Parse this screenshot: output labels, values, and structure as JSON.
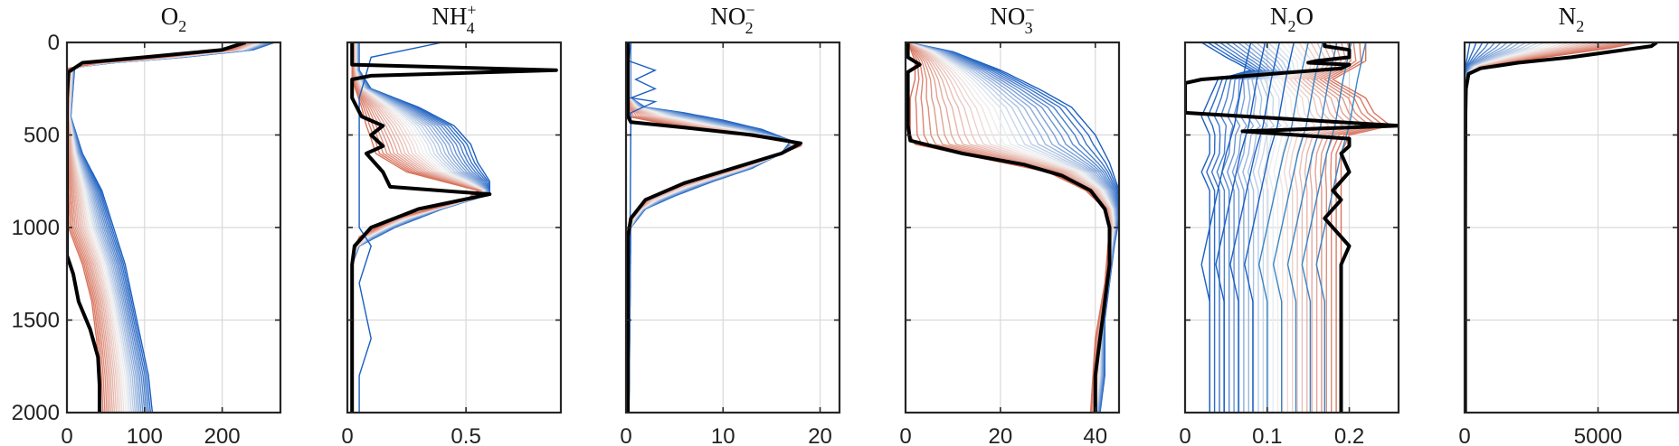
{
  "chart_data": [
    {
      "type": "line",
      "title_main": "O",
      "title_sub": "2",
      "title_sup": "",
      "xlim": [
        0,
        275
      ],
      "xticks": [
        0,
        100,
        200
      ],
      "xtick_labels": [
        "0",
        "100",
        "200"
      ],
      "ylim": [
        0,
        2000
      ],
      "yreverse": true,
      "grid": true,
      "yticks": [
        0,
        500,
        1000,
        1500,
        2000
      ],
      "ytick_labels": [
        "0",
        "500",
        "1000",
        "1500",
        "2000"
      ],
      "colormap_start": "#1b5fc2",
      "colormap_mid": "#f2f2f2",
      "colormap_end": "#d9735c",
      "bold_color": "#000000",
      "ensemble_start": [
        [
          268,
          0
        ],
        [
          240,
          40
        ],
        [
          150,
          80
        ],
        [
          60,
          110
        ],
        [
          10,
          135
        ],
        [
          5,
          400
        ],
        [
          20,
          600
        ],
        [
          45,
          800
        ],
        [
          60,
          1000
        ],
        [
          75,
          1200
        ],
        [
          85,
          1400
        ],
        [
          95,
          1600
        ],
        [
          105,
          1800
        ],
        [
          110,
          2000
        ]
      ],
      "ensemble_end": [
        [
          230,
          0
        ],
        [
          210,
          40
        ],
        [
          120,
          80
        ],
        [
          40,
          110
        ],
        [
          2,
          140
        ],
        [
          0,
          600
        ],
        [
          0,
          800
        ],
        [
          2,
          1000
        ],
        [
          20,
          1200
        ],
        [
          32,
          1400
        ],
        [
          38,
          1600
        ],
        [
          42,
          1800
        ],
        [
          44,
          2000
        ]
      ],
      "bold": [
        [
          230,
          0
        ],
        [
          200,
          40
        ],
        [
          100,
          80
        ],
        [
          20,
          110
        ],
        [
          2,
          160
        ],
        [
          0,
          300
        ],
        [
          0,
          850
        ],
        [
          0,
          1150
        ],
        [
          8,
          1250
        ],
        [
          15,
          1400
        ],
        [
          30,
          1550
        ],
        [
          40,
          1700
        ],
        [
          42,
          1850
        ],
        [
          42,
          2000
        ]
      ],
      "thin_blue": []
    },
    {
      "type": "line",
      "title_main": "NH",
      "title_sub": "4",
      "title_sup": "+",
      "xlim": [
        0,
        0.9
      ],
      "xticks": [
        0,
        0.5
      ],
      "xtick_labels": [
        "0",
        "0.5"
      ],
      "ylim": [
        0,
        2000
      ],
      "yreverse": true,
      "grid": true,
      "yticks": [
        0,
        500,
        1000,
        1500,
        2000
      ],
      "ytick_labels": [
        "",
        "",
        "",
        "",
        ""
      ],
      "colormap_start": "#1b5fc2",
      "colormap_mid": "#f2f2f2",
      "colormap_end": "#d9735c",
      "bold_color": "#000000",
      "ensemble_start": [
        [
          0.05,
          0
        ],
        [
          0.05,
          150
        ],
        [
          0.1,
          250
        ],
        [
          0.3,
          350
        ],
        [
          0.45,
          450
        ],
        [
          0.52,
          550
        ],
        [
          0.55,
          650
        ],
        [
          0.6,
          750
        ],
        [
          0.6,
          820
        ],
        [
          0.4,
          900
        ],
        [
          0.2,
          1000
        ],
        [
          0.05,
          1100
        ],
        [
          0.02,
          1200
        ],
        [
          0.02,
          2000
        ]
      ],
      "ensemble_end": [
        [
          0.02,
          0
        ],
        [
          0.02,
          200
        ],
        [
          0.06,
          350
        ],
        [
          0.08,
          450
        ],
        [
          0.1,
          520
        ],
        [
          0.12,
          600
        ],
        [
          0.25,
          700
        ],
        [
          0.55,
          800
        ],
        [
          0.5,
          850
        ],
        [
          0.2,
          950
        ],
        [
          0.05,
          1050
        ],
        [
          0.02,
          1150
        ],
        [
          0.02,
          2000
        ]
      ],
      "bold": [
        [
          0.02,
          0
        ],
        [
          0.02,
          120
        ],
        [
          0.88,
          150
        ],
        [
          0.1,
          180
        ],
        [
          0.02,
          200
        ],
        [
          0.02,
          300
        ],
        [
          0.06,
          400
        ],
        [
          0.15,
          450
        ],
        [
          0.1,
          500
        ],
        [
          0.15,
          560
        ],
        [
          0.08,
          600
        ],
        [
          0.15,
          700
        ],
        [
          0.18,
          780
        ],
        [
          0.6,
          820
        ],
        [
          0.3,
          900
        ],
        [
          0.1,
          1000
        ],
        [
          0.03,
          1100
        ],
        [
          0.02,
          1200
        ],
        [
          0.02,
          2000
        ]
      ],
      "thin_blue": [
        [
          0.4,
          0
        ],
        [
          0.1,
          80
        ],
        [
          0.05,
          300
        ],
        [
          0.05,
          1000
        ],
        [
          0.1,
          1100
        ],
        [
          0.05,
          1300
        ],
        [
          0.1,
          1600
        ],
        [
          0.05,
          1800
        ],
        [
          0.05,
          2000
        ]
      ]
    },
    {
      "type": "line",
      "title_main": "NO",
      "title_sub": "2",
      "title_sup": "−",
      "xlim": [
        0,
        22
      ],
      "xticks": [
        0,
        10,
        20
      ],
      "xtick_labels": [
        "0",
        "10",
        "20"
      ],
      "ylim": [
        0,
        2000
      ],
      "yreverse": true,
      "grid": true,
      "yticks": [
        0,
        500,
        1000,
        1500,
        2000
      ],
      "ytick_labels": [
        "",
        "",
        "",
        "",
        ""
      ],
      "colormap_start": "#1b5fc2",
      "colormap_mid": "#f2f2f2",
      "colormap_end": "#d9735c",
      "bold_color": "#000000",
      "ensemble_start": [
        [
          0.5,
          0
        ],
        [
          0.5,
          300
        ],
        [
          2,
          350
        ],
        [
          6,
          380
        ],
        [
          10,
          420
        ],
        [
          14,
          470
        ],
        [
          17,
          530
        ],
        [
          16,
          600
        ],
        [
          13,
          680
        ],
        [
          9,
          750
        ],
        [
          5,
          830
        ],
        [
          2,
          900
        ],
        [
          0.5,
          1000
        ],
        [
          0.3,
          2000
        ]
      ],
      "ensemble_end": [
        [
          0.2,
          0
        ],
        [
          0.2,
          400
        ],
        [
          5,
          450
        ],
        [
          12,
          500
        ],
        [
          17,
          540
        ],
        [
          18,
          560
        ],
        [
          15,
          620
        ],
        [
          10,
          700
        ],
        [
          5,
          780
        ],
        [
          2,
          850
        ],
        [
          0.5,
          950
        ],
        [
          0.2,
          1050
        ],
        [
          0.2,
          2000
        ]
      ],
      "bold": [
        [
          0.2,
          0
        ],
        [
          0.2,
          400
        ],
        [
          0.5,
          430
        ],
        [
          6,
          460
        ],
        [
          13,
          500
        ],
        [
          18,
          545
        ],
        [
          16,
          600
        ],
        [
          11,
          680
        ],
        [
          6,
          760
        ],
        [
          2,
          850
        ],
        [
          0.5,
          950
        ],
        [
          0.2,
          1050
        ],
        [
          0.2,
          2000
        ]
      ],
      "thin_blue": [
        [
          0.5,
          0
        ],
        [
          0.3,
          100
        ],
        [
          3,
          150
        ],
        [
          1,
          200
        ],
        [
          3,
          250
        ],
        [
          0.5,
          300
        ],
        [
          3,
          320
        ],
        [
          0.5,
          380
        ],
        [
          0.3,
          2000
        ]
      ]
    },
    {
      "type": "line",
      "title_main": "NO",
      "title_sub": "3",
      "title_sup": "−",
      "xlim": [
        0,
        45
      ],
      "xticks": [
        0,
        20,
        40
      ],
      "xtick_labels": [
        "0",
        "20",
        "40"
      ],
      "ylim": [
        0,
        2000
      ],
      "yreverse": true,
      "grid": true,
      "yticks": [
        0,
        500,
        1000,
        1500,
        2000
      ],
      "ytick_labels": [
        "",
        "",
        "",
        "",
        ""
      ],
      "colormap_start": "#1b5fc2",
      "colormap_mid": "#f2f2f2",
      "colormap_end": "#d9735c",
      "bold_color": "#000000",
      "ensemble_start": [
        [
          0.5,
          0
        ],
        [
          10,
          50
        ],
        [
          20,
          150
        ],
        [
          28,
          250
        ],
        [
          35,
          350
        ],
        [
          40,
          500
        ],
        [
          43,
          650
        ],
        [
          45,
          800
        ],
        [
          45,
          950
        ],
        [
          44,
          1100
        ],
        [
          43,
          1300
        ],
        [
          42,
          1500
        ],
        [
          42,
          1800
        ],
        [
          41,
          2000
        ]
      ],
      "ensemble_end": [
        [
          0.5,
          0
        ],
        [
          2,
          100
        ],
        [
          2,
          200
        ],
        [
          1,
          300
        ],
        [
          1,
          400
        ],
        [
          1,
          500
        ],
        [
          2,
          550
        ],
        [
          15,
          620
        ],
        [
          30,
          700
        ],
        [
          38,
          800
        ],
        [
          42,
          900
        ],
        [
          43,
          1000
        ],
        [
          42,
          1300
        ],
        [
          40,
          1600
        ],
        [
          39,
          2000
        ]
      ],
      "bold": [
        [
          0.5,
          0
        ],
        [
          0.5,
          80
        ],
        [
          3,
          120
        ],
        [
          0.5,
          160
        ],
        [
          0.5,
          300
        ],
        [
          0.5,
          450
        ],
        [
          1,
          530
        ],
        [
          12,
          600
        ],
        [
          25,
          660
        ],
        [
          33,
          720
        ],
        [
          39,
          800
        ],
        [
          42,
          900
        ],
        [
          43,
          1000
        ],
        [
          43,
          1200
        ],
        [
          42,
          1400
        ],
        [
          41,
          1600
        ],
        [
          40,
          1800
        ],
        [
          40,
          2000
        ]
      ],
      "thin_blue": []
    },
    {
      "type": "line",
      "title_main": "N",
      "title_sub": "2",
      "title_sup": "",
      "title_tail": "O",
      "xlim": [
        0,
        0.26
      ],
      "xticks": [
        0,
        0.1,
        0.2
      ],
      "xtick_labels": [
        "0",
        "0.1",
        "0.2"
      ],
      "ylim": [
        0,
        2000
      ],
      "yreverse": true,
      "grid": true,
      "yticks": [
        0,
        500,
        1000,
        1500,
        2000
      ],
      "ytick_labels": [
        "",
        "",
        "",
        "",
        ""
      ],
      "colormap_start": "#1b5fc2",
      "colormap_mid": "#f2f2f2",
      "colormap_end": "#d9735c",
      "bold_color": "#000000",
      "ensemble_start": [
        [
          0.02,
          0
        ],
        [
          0.05,
          80
        ],
        [
          0.08,
          150
        ],
        [
          0.04,
          200
        ],
        [
          0.03,
          300
        ],
        [
          0.02,
          400
        ],
        [
          0.03,
          500
        ],
        [
          0.03,
          600
        ],
        [
          0.02,
          700
        ],
        [
          0.03,
          800
        ],
        [
          0.03,
          1000
        ],
        [
          0.03,
          1200
        ],
        [
          0.03,
          1500
        ],
        [
          0.03,
          2000
        ]
      ],
      "ensemble_end": [
        [
          0.22,
          0
        ],
        [
          0.22,
          100
        ],
        [
          0.18,
          200
        ],
        [
          0.22,
          300
        ],
        [
          0.23,
          380
        ],
        [
          0.25,
          450
        ],
        [
          0.2,
          500
        ],
        [
          0.19,
          600
        ],
        [
          0.19,
          800
        ],
        [
          0.19,
          1000
        ],
        [
          0.19,
          1200
        ],
        [
          0.19,
          1500
        ],
        [
          0.19,
          2000
        ]
      ],
      "bold": [
        [
          0.17,
          0
        ],
        [
          0.17,
          20
        ],
        [
          0.2,
          40
        ],
        [
          0.2,
          80
        ],
        [
          0.16,
          100
        ],
        [
          0.15,
          110
        ],
        [
          0.2,
          120
        ],
        [
          0.19,
          140
        ],
        [
          0.02,
          200
        ],
        [
          0.0,
          220
        ],
        [
          0.0,
          380
        ],
        [
          0.15,
          420
        ],
        [
          0.26,
          450
        ],
        [
          0.07,
          480
        ],
        [
          0.2,
          520
        ],
        [
          0.2,
          560
        ],
        [
          0.19,
          600
        ],
        [
          0.2,
          700
        ],
        [
          0.18,
          800
        ],
        [
          0.19,
          850
        ],
        [
          0.17,
          950
        ],
        [
          0.2,
          1100
        ],
        [
          0.19,
          1200
        ],
        [
          0.19,
          1500
        ],
        [
          0.19,
          2000
        ]
      ],
      "thin_blue": [
        [
          0.08,
          0
        ],
        [
          0.07,
          200
        ],
        [
          0.06,
          450
        ],
        [
          0.05,
          600
        ],
        [
          0.04,
          800
        ],
        [
          0.03,
          1000
        ],
        [
          0.02,
          1200
        ],
        [
          0.03,
          1400
        ],
        [
          0.03,
          1600
        ],
        [
          0.03,
          2000
        ]
      ]
    },
    {
      "type": "line",
      "title_main": "N",
      "title_sub": "2",
      "title_sup": "",
      "xlim": [
        0,
        8000
      ],
      "xticks": [
        0,
        5000
      ],
      "xtick_labels": [
        "0",
        "5000"
      ],
      "ylim": [
        0,
        2000
      ],
      "yreverse": true,
      "grid": true,
      "yticks": [
        0,
        500,
        1000,
        1500,
        2000
      ],
      "ytick_labels": [
        "",
        "",
        "",
        "",
        ""
      ],
      "colormap_start": "#1b5fc2",
      "colormap_mid": "#f2f2f2",
      "colormap_end": "#d9735c",
      "bold_color": "#000000",
      "ensemble_start": [
        [
          200,
          0
        ],
        [
          50,
          120
        ],
        [
          20,
          300
        ],
        [
          20,
          2000
        ]
      ],
      "ensemble_end": [
        [
          6500,
          0
        ],
        [
          5500,
          30
        ],
        [
          3000,
          80
        ],
        [
          800,
          130
        ],
        [
          200,
          170
        ],
        [
          50,
          250
        ],
        [
          30,
          500
        ],
        [
          30,
          2000
        ]
      ],
      "bold": [
        [
          7200,
          0
        ],
        [
          7000,
          20
        ],
        [
          6000,
          40
        ],
        [
          4000,
          80
        ],
        [
          2000,
          110
        ],
        [
          600,
          140
        ],
        [
          150,
          170
        ],
        [
          50,
          250
        ],
        [
          30,
          400
        ],
        [
          20,
          1000
        ],
        [
          20,
          2000
        ]
      ],
      "thin_blue": []
    }
  ]
}
